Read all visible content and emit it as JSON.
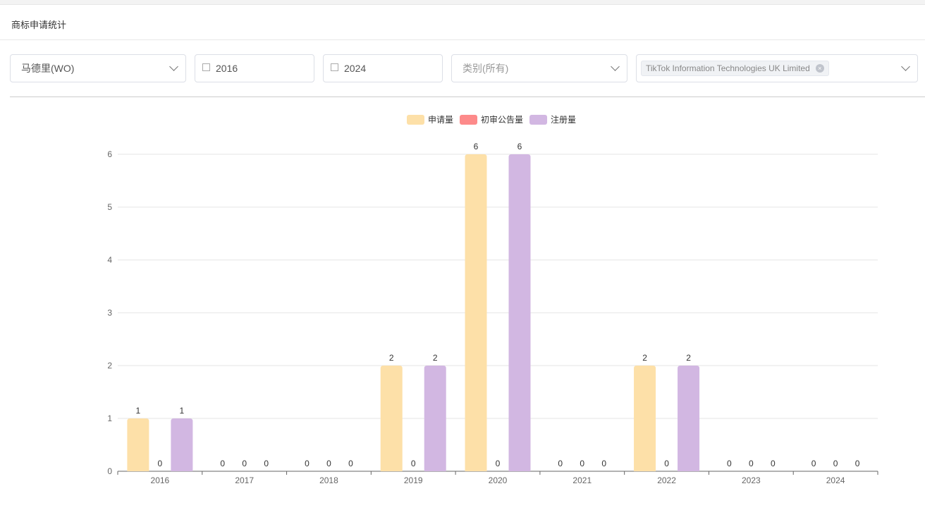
{
  "page": {
    "title": "商标申请统计"
  },
  "filters": {
    "office": "马德里(WO)",
    "start_year": "2016",
    "end_year": "2024",
    "category_placeholder": "类别(所有)",
    "applicant_tag": "TikTok Information Technologies UK Limited"
  },
  "chart_data": {
    "type": "bar",
    "categories": [
      "2016",
      "2017",
      "2018",
      "2019",
      "2020",
      "2021",
      "2022",
      "2023",
      "2024"
    ],
    "series": [
      {
        "name": "申请量",
        "color": "#fde0a8",
        "values": [
          1,
          0,
          0,
          2,
          6,
          0,
          2,
          0,
          0
        ]
      },
      {
        "name": "初审公告量",
        "color": "#fd8a8a",
        "values": [
          0,
          0,
          0,
          0,
          0,
          0,
          0,
          0,
          0
        ]
      },
      {
        "name": "注册量",
        "color": "#d2b7e2",
        "values": [
          1,
          0,
          0,
          2,
          6,
          0,
          2,
          0,
          0
        ]
      }
    ],
    "ylim": [
      0,
      6
    ],
    "yticks": [
      0,
      1,
      2,
      3,
      4,
      5,
      6
    ],
    "grid": true,
    "legend": "top-center",
    "data_labels": true
  }
}
